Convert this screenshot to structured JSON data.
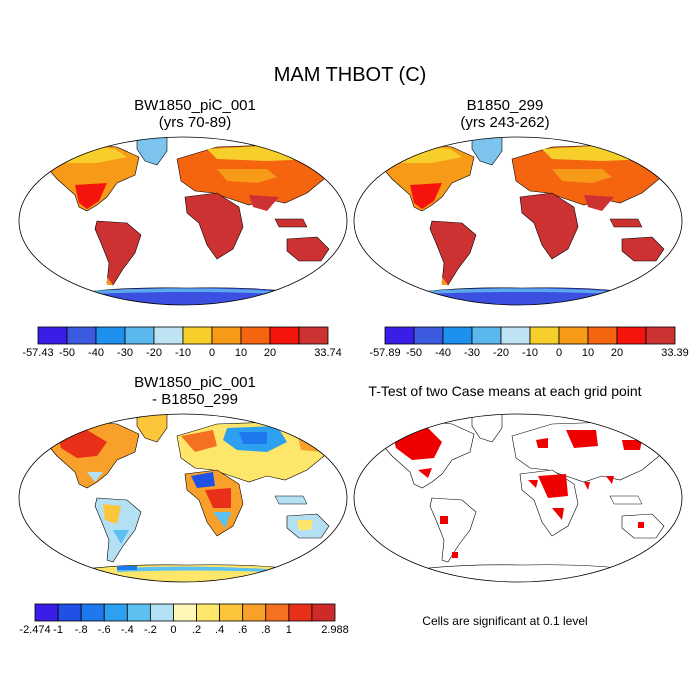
{
  "title": "MAM THBOT (C)",
  "panels": [
    {
      "title_line1": "BW1850_piC_001",
      "title_line2": "(yrs 70-89)",
      "colorbar": {
        "colors": [
          "#3a1ee8",
          "#3c5ae0",
          "#1e90ee",
          "#5bb8ee",
          "#bfe3f3",
          "#f7cf2a",
          "#f79a18",
          "#f5640f",
          "#f5140c",
          "#cd3232"
        ],
        "labels": [
          "-57.43",
          "-50",
          "-40",
          "-30",
          "-20",
          "-10",
          "0",
          "10",
          "20",
          "33.74"
        ]
      }
    },
    {
      "title_line1": "B1850_299",
      "title_line2": "(yrs 243-262)",
      "colorbar": {
        "colors": [
          "#3a1ee8",
          "#3c5ae0",
          "#1e90ee",
          "#5bb8ee",
          "#bfe3f3",
          "#f7cf2a",
          "#f79a18",
          "#f5640f",
          "#f5140c",
          "#cd3232"
        ],
        "labels": [
          "-57.89",
          "-50",
          "-40",
          "-30",
          "-20",
          "-10",
          "0",
          "10",
          "20",
          "33.39"
        ]
      }
    },
    {
      "title_line1": "BW1850_piC_001",
      "title_line2": "- B1850_299",
      "colorbar": {
        "colors": [
          "#3a1ee8",
          "#2050e6",
          "#1e78ee",
          "#2ea0f0",
          "#5cc0f0",
          "#b4e0f4",
          "#fff7b8",
          "#fde66a",
          "#fcc53a",
          "#f8a02a",
          "#f57020",
          "#e83018",
          "#cf2a2a"
        ],
        "labels": [
          "-2.474",
          "-1",
          "-.8",
          "-.6",
          "-.4",
          "-.2",
          "0",
          ".2",
          ".4",
          ".6",
          ".8",
          "1",
          "2.988"
        ]
      }
    },
    {
      "title_line1": "T-Test of two Case means at each grid point",
      "note": "Cells are significant at 0.1 level"
    }
  ]
}
